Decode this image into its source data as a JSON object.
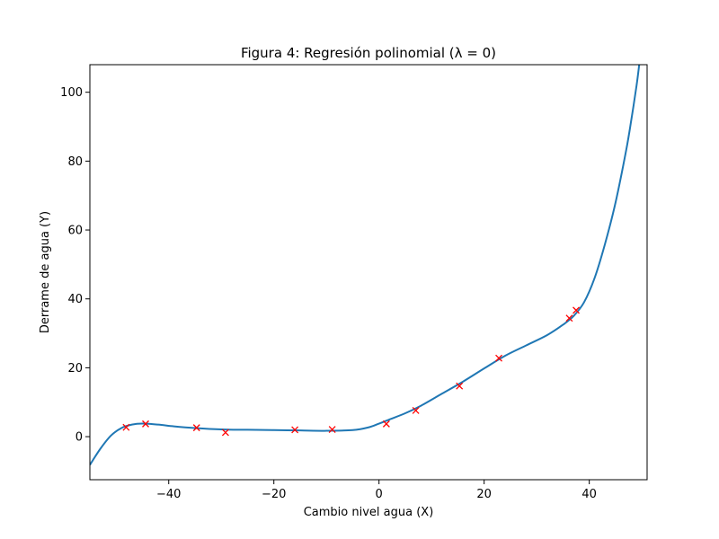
{
  "chart_data": {
    "type": "scatter",
    "title": "Figura 4: Regresión polinomial (λ = 0)",
    "xlabel": "Cambio nivel agua (X)",
    "ylabel": "Derrame de agua (Y)",
    "xlim": [
      -55,
      51
    ],
    "ylim": [
      -12.5,
      108
    ],
    "xticks": [
      -40,
      -20,
      0,
      20,
      40
    ],
    "yticks": [
      0,
      20,
      40,
      60,
      80,
      100
    ],
    "xtick_labels": [
      "−40",
      "−20",
      "0",
      "20",
      "40"
    ],
    "ytick_labels": [
      "0",
      "20",
      "40",
      "60",
      "80",
      "100"
    ],
    "grid": false,
    "series": [
      {
        "kind": "points",
        "marker": "x",
        "color": "#ff0000",
        "x": [
          -48.1,
          -44.4,
          -34.7,
          -29.2,
          -16.0,
          -8.9,
          1.4,
          7.0,
          15.3,
          22.8,
          36.2,
          37.5
        ],
        "y": [
          2.7,
          3.7,
          2.6,
          1.2,
          2.0,
          2.1,
          3.7,
          7.6,
          14.7,
          22.8,
          34.4,
          36.7
        ]
      },
      {
        "kind": "line",
        "color": "#1f77b4",
        "x": [
          -55,
          -53,
          -51,
          -49,
          -47,
          -45,
          -42,
          -39,
          -35,
          -30,
          -25,
          -20,
          -15,
          -10,
          -5,
          -2,
          0,
          2,
          5,
          8,
          12,
          16,
          20,
          24,
          28,
          32,
          35,
          37,
          39,
          41,
          43,
          45,
          47,
          48,
          49,
          49.5
        ],
        "y": [
          -8.2,
          -3.5,
          0.3,
          2.5,
          3.5,
          3.8,
          3.5,
          3.0,
          2.5,
          2.1,
          2.0,
          1.9,
          1.8,
          1.7,
          1.9,
          2.7,
          3.8,
          5.0,
          6.8,
          9.0,
          12.5,
          16.0,
          19.8,
          23.5,
          26.5,
          29.5,
          32.5,
          35.0,
          39.0,
          46.0,
          56.0,
          68.0,
          83.0,
          92.0,
          102.0,
          108.0
        ]
      }
    ]
  }
}
